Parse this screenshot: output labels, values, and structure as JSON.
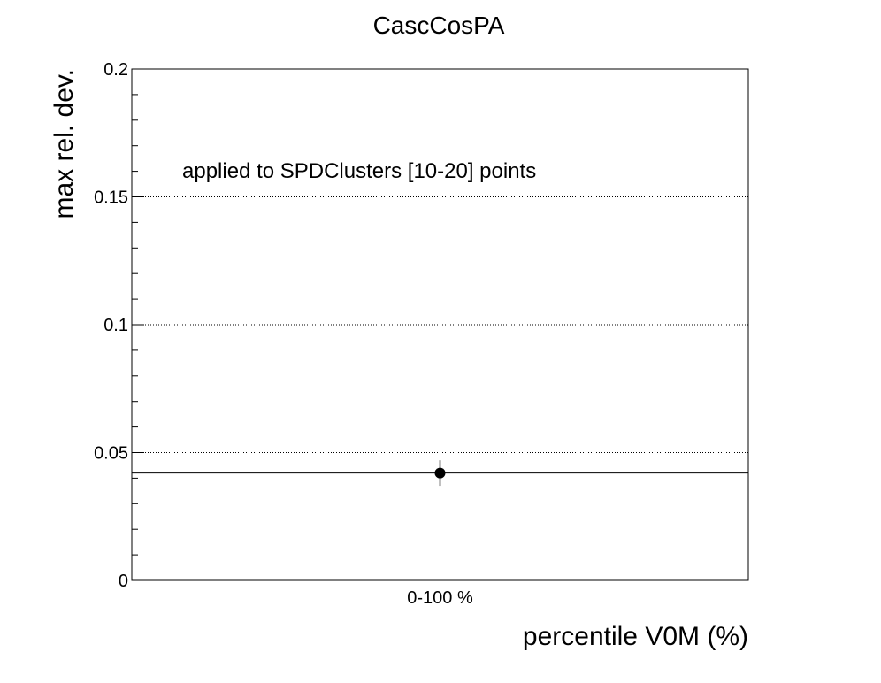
{
  "chart_data": {
    "type": "scatter",
    "title": "CascCosPA",
    "xlabel": "percentile V0M (%)",
    "ylabel": "max rel. dev.",
    "categories": [
      "0-100 %"
    ],
    "series": [
      {
        "values": [
          0.042
        ],
        "errors": [
          0.005
        ],
        "color": "#000000"
      }
    ],
    "reference_line": 0.042,
    "annotation": "applied to SPDClusters [10-20] points",
    "ylim": [
      0,
      0.2
    ],
    "y_ticks": [
      "0",
      "0.05",
      "0.1",
      "0.15",
      "0.2"
    ],
    "grid": "horizontal dotted"
  }
}
